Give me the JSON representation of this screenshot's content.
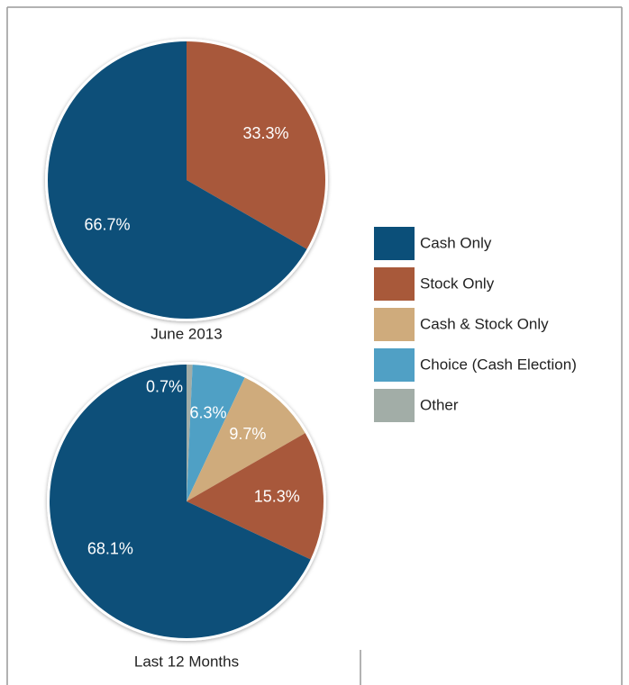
{
  "legend": [
    {
      "name": "Cash Only",
      "color": "#0b4f79"
    },
    {
      "name": "Stock Only",
      "color": "#a8593a"
    },
    {
      "name": "Cash & Stock Only",
      "color": "#cfab7c"
    },
    {
      "name": "Choice (Cash Election)",
      "color": "#50a0c5"
    },
    {
      "name": "Other",
      "color": "#a2ada7"
    }
  ],
  "chart_data": [
    {
      "type": "pie",
      "title": "June 2013",
      "values": [
        66.7,
        33.3,
        null,
        null,
        null
      ],
      "value_labels": [
        "66.7%",
        "33.3%",
        null,
        null,
        null
      ]
    },
    {
      "type": "pie",
      "title": "Last 12 Months",
      "values": [
        68.1,
        15.3,
        9.7,
        6.3,
        0.7
      ],
      "value_labels": [
        "68.1%",
        "15.3%",
        "9.7%",
        "6.3%",
        "0.7%"
      ]
    }
  ]
}
